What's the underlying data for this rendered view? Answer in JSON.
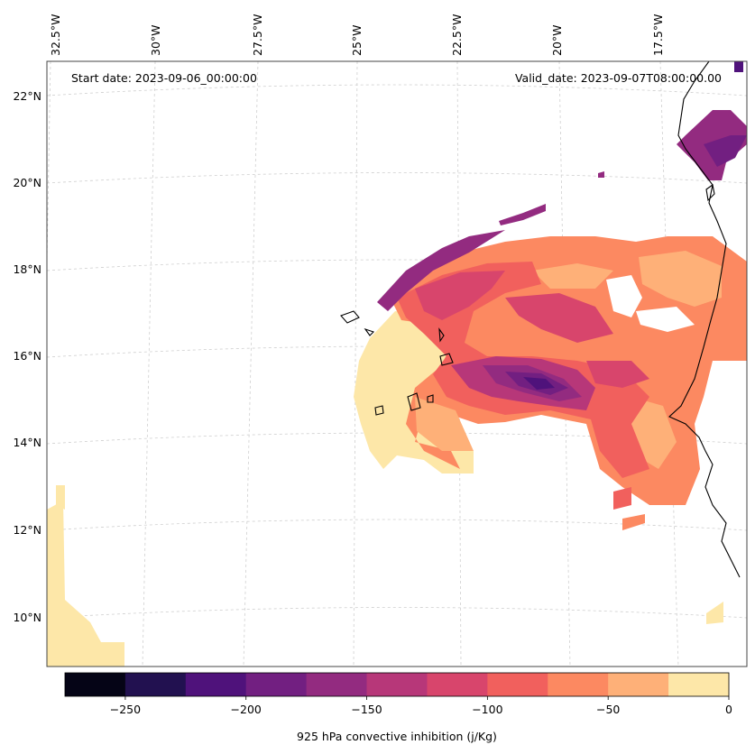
{
  "map": {
    "start_date_text": "Start date: 2023-09-06_00:00:00",
    "valid_date_text": "Valid_date: 2023-09-07T08:00:00.00",
    "lon_labels": [
      "32.5°W",
      "30°W",
      "27.5°W",
      "25°W",
      "22.5°W",
      "20°W",
      "17.5°W"
    ],
    "lat_labels": [
      "22°N",
      "20°N",
      "18°N",
      "16°N",
      "14°N",
      "12°N",
      "10°N"
    ],
    "field": "925 hPa convective inhibition",
    "units": "j/Kg"
  },
  "colorbar": {
    "label": "925 hPa convective inhibition (j/Kg)",
    "tick_labels": [
      "−250",
      "−200",
      "−150",
      "−100",
      "−50",
      "0"
    ],
    "levels": [
      -275,
      -250,
      -225,
      -200,
      -175,
      -150,
      -125,
      -100,
      -75,
      -50,
      -25,
      0
    ],
    "colors": [
      "#050416",
      "#221150",
      "#4f127b",
      "#721f81",
      "#932b80",
      "#b73779",
      "#d8456c",
      "#f1605d",
      "#fc8961",
      "#feb078",
      "#fde7a8"
    ]
  },
  "colors": {
    "land_outline": "#000000",
    "grid": "#cccccc",
    "frame": "#444444"
  }
}
